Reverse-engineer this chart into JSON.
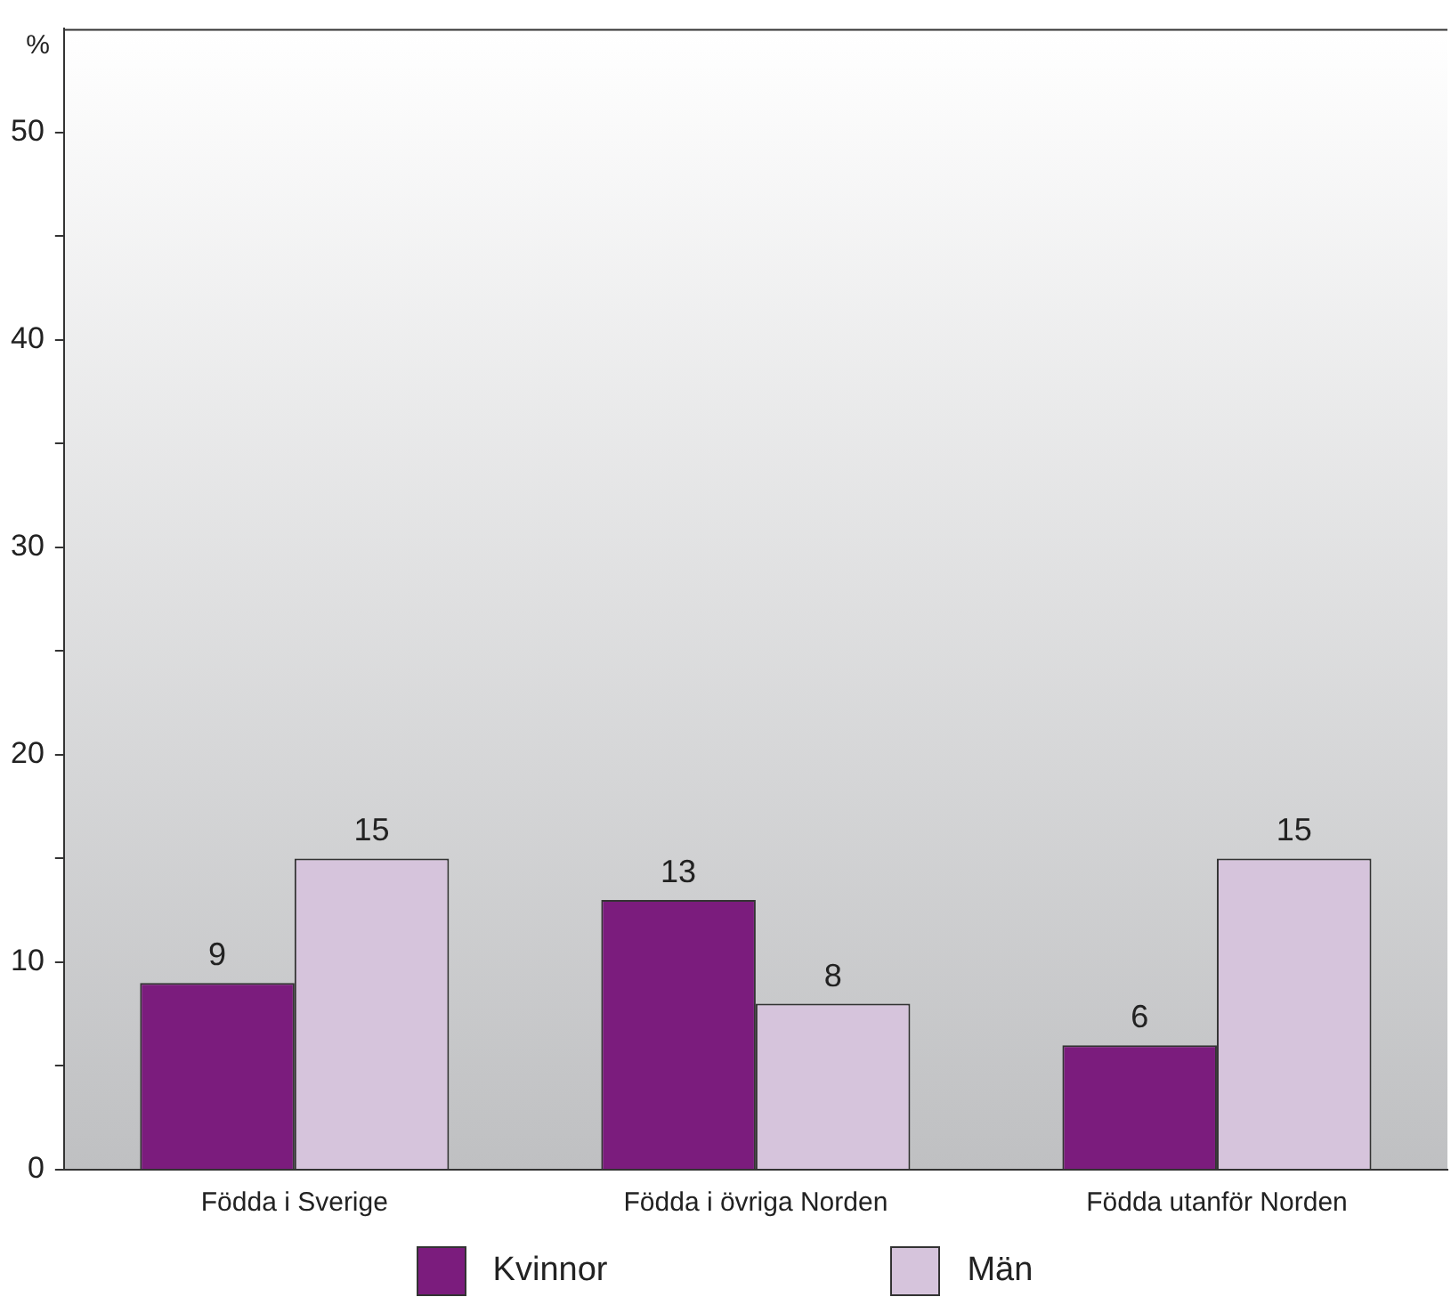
{
  "chart_data": {
    "type": "bar",
    "ylabel": "%",
    "categories": [
      "Födda i Sverige",
      "Födda i övriga Norden",
      "Födda utanför Norden"
    ],
    "series": [
      {
        "name": "Kvinnor",
        "color": "#7b1c7d",
        "values": [
          9,
          13,
          6
        ]
      },
      {
        "name": "Män",
        "color": "#d6c4dc",
        "values": [
          15,
          8,
          15
        ]
      }
    ],
    "ylim": [
      0,
      55
    ],
    "yticks": [
      0,
      {
        "value": 5,
        "label": null
      },
      10,
      {
        "value": 15,
        "label": null
      },
      20,
      {
        "value": 25,
        "label": null
      },
      30,
      {
        "value": 35,
        "label": null
      },
      40,
      {
        "value": 45,
        "label": null
      },
      50
    ],
    "data_labels": true,
    "grid": false,
    "legend": "bottom"
  }
}
